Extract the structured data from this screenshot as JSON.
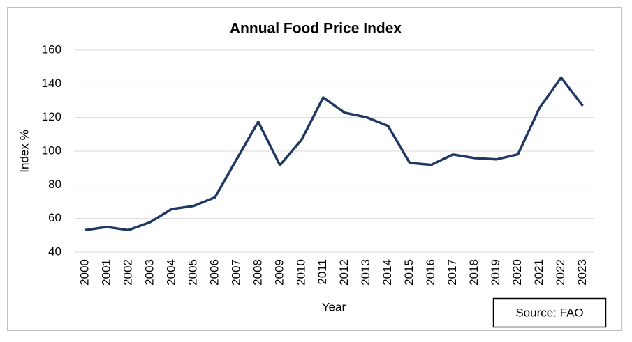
{
  "chart_data": {
    "type": "line",
    "title": "Annual Food Price Index",
    "x_label": "Year",
    "y_label": "Index %",
    "annotation": "Source: FAO",
    "categories": [
      "2000",
      "2001",
      "2002",
      "2003",
      "2004",
      "2005",
      "2006",
      "2007",
      "2008",
      "2009",
      "2010",
      "2011",
      "2012",
      "2013",
      "2014",
      "2015",
      "2016",
      "2017",
      "2018",
      "2019",
      "2020",
      "2021",
      "2022",
      "2023"
    ],
    "series": [
      {
        "name": "Food Price Index",
        "color": "#203864",
        "values": [
          53.1,
          55.0,
          53.1,
          57.8,
          65.6,
          67.4,
          72.6,
          95.1,
          117.5,
          91.7,
          106.7,
          131.9,
          122.8,
          120.1,
          115.0,
          93.0,
          91.9,
          98.0,
          95.9,
          95.1,
          98.1,
          125.7,
          143.7,
          126.9
        ]
      }
    ],
    "ylim": [
      40,
      160
    ],
    "yticks": [
      40,
      60,
      80,
      100,
      120,
      140,
      160
    ],
    "grid": true
  }
}
